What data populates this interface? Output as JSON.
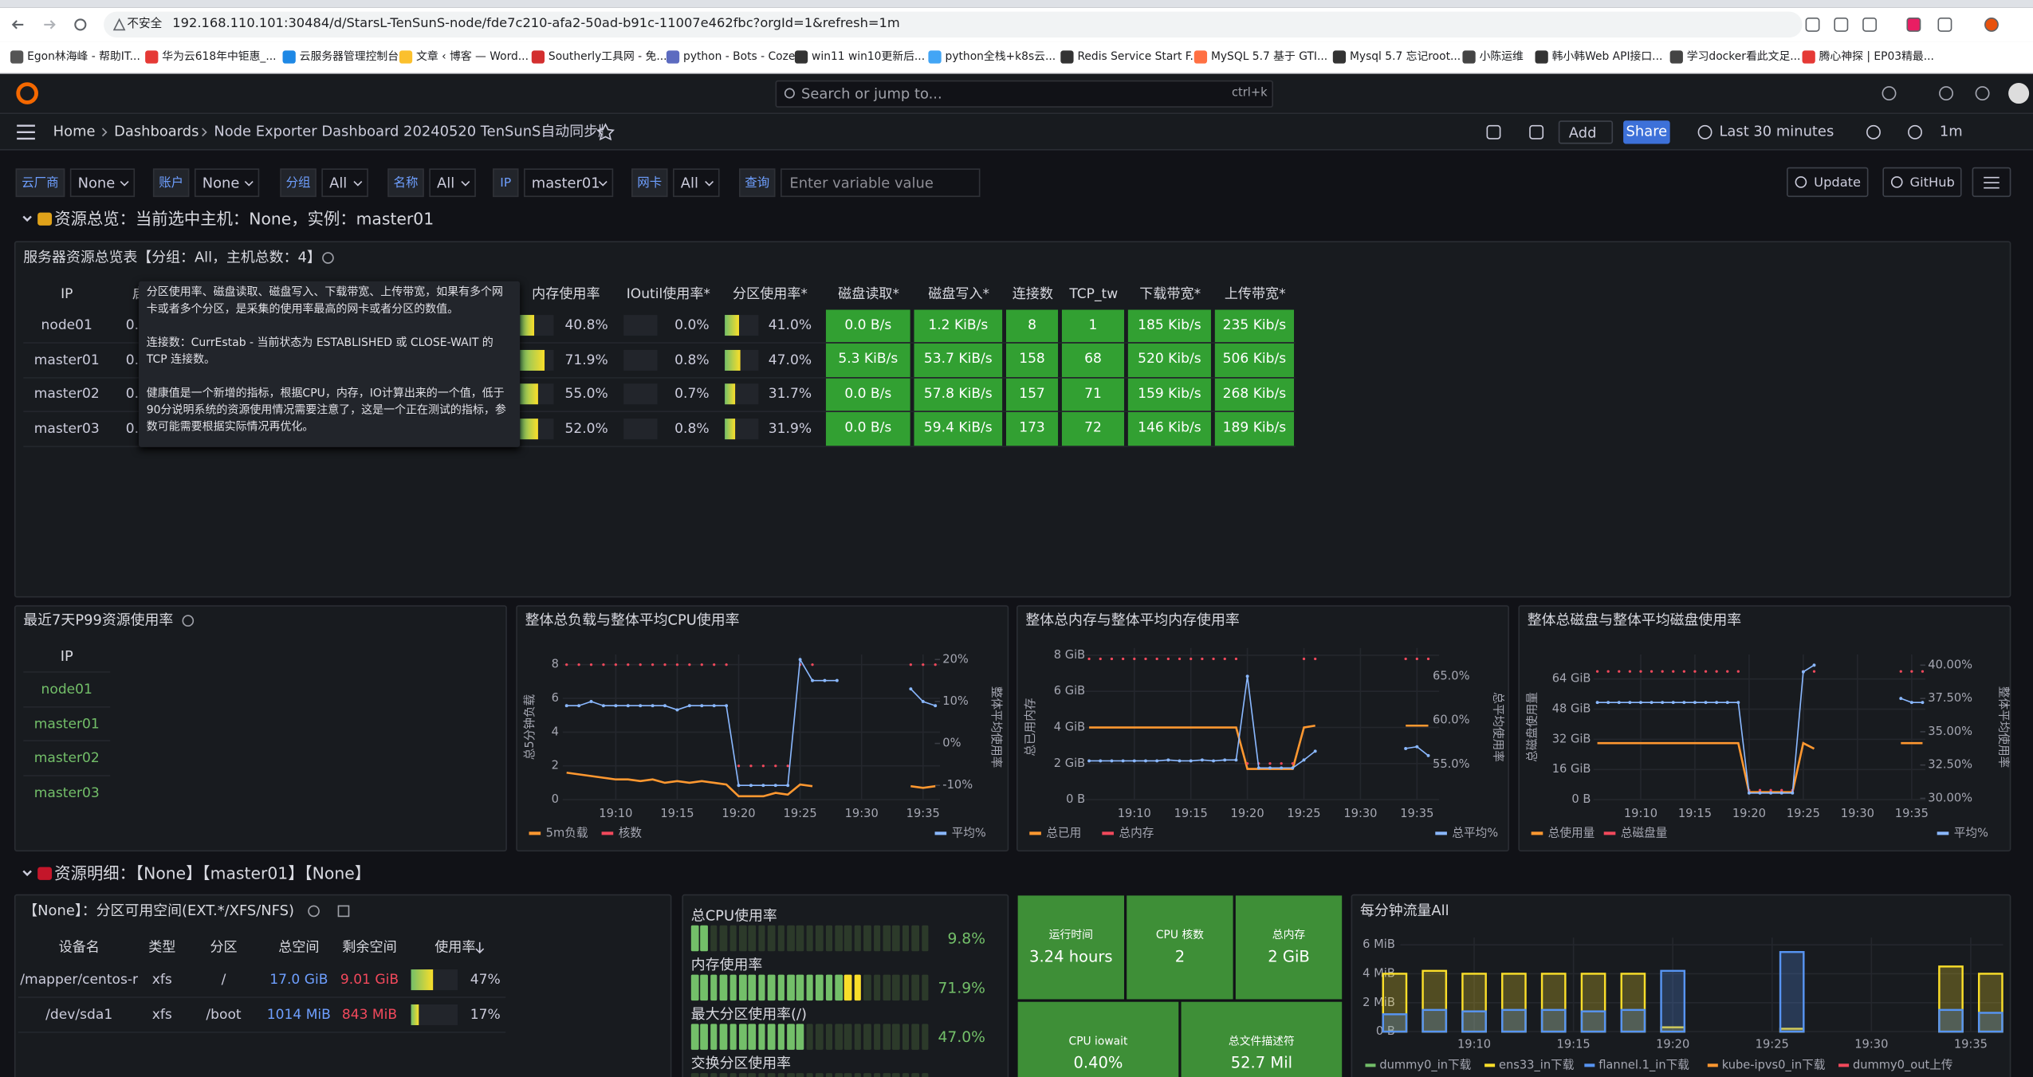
{
  "browser": {
    "security": "不安全",
    "url": "192.168.110.101:30484/d/StarsL-TenSunS-node/fde7c210-afa2-50ad-b91c-11007e462fbc?orgId=1&refresh=1m",
    "bookmarks": [
      "Egon林海峰 - 帮助IT...",
      "华为云618年中钜惠_...",
      "云服务器管理控制台",
      "文章 ‹ 博客 — Word...",
      "Southerly工具网 - 免...",
      "python - Bots - Coze",
      "win11 win10更新后...",
      "python全栈+k8s云...",
      "Redis Service Start F...",
      "MySQL 5.7 基于 GTI...",
      "Mysql 5.7 忘记root...",
      "小陈运维",
      "韩小韩Web API接口...",
      "学习docker看此文足...",
      "腾心神探 | EP03精最..."
    ]
  },
  "topbar": {
    "search": "Search or jump to...",
    "shortcut": "ctrl+k"
  },
  "breadcrumb": [
    "Home",
    "Dashboards",
    "Node Exporter Dashboard 20240520 TenSunS自动同步版"
  ],
  "toolbar": {
    "add": "Add",
    "share": "Share",
    "time_range": "Last 30 minutes",
    "refresh": "1m"
  },
  "variables": [
    {
      "label": "云厂商",
      "value": "None"
    },
    {
      "label": "账户",
      "value": "None"
    },
    {
      "label": "分组",
      "value": "All"
    },
    {
      "label": "名称",
      "value": "All"
    },
    {
      "label": "IP",
      "value": "master01"
    },
    {
      "label": "网卡",
      "value": "All"
    },
    {
      "label": "查询",
      "placeholder": "Enter variable value"
    }
  ],
  "links": [
    "Update",
    "GitHub"
  ],
  "rows": [
    "资源总览：当前选中主机：None，实例：master01",
    "资源明细：【None】【master01】【None】"
  ],
  "summary_table": {
    "title": "服务器资源总览表【分组：All，主机总数：4】",
    "columns": [
      "IP",
      "启动",
      "内存使用率",
      "IOutil使用率*",
      "分区使用率*",
      "磁盘读取*",
      "磁盘写入*",
      "连接数",
      "TCP_tw",
      "下载带宽*",
      "上传带宽*"
    ],
    "rows": [
      [
        "node01",
        "0.",
        "40.8%",
        "0.0%",
        "41.0%",
        "0.0 B/s",
        "1.2 KiB/s",
        "8",
        "1",
        "185 Kib/s",
        "235 Kib/s"
      ],
      [
        "master01",
        "0.",
        "71.9%",
        "0.8%",
        "47.0%",
        "5.3 KiB/s",
        "53.7 KiB/s",
        "158",
        "68",
        "520 Kib/s",
        "506 Kib/s"
      ],
      [
        "master02",
        "0.",
        "55.0%",
        "0.7%",
        "31.7%",
        "0.0 B/s",
        "57.8 KiB/s",
        "157",
        "71",
        "159 Kib/s",
        "268 Kib/s"
      ],
      [
        "master03",
        "0.",
        "52.0%",
        "0.8%",
        "31.9%",
        "0.0 B/s",
        "59.4 KiB/s",
        "173",
        "72",
        "146 Kib/s",
        "189 Kib/s"
      ]
    ],
    "tooltip": [
      "分区使用率、磁盘读取、磁盘写入、下载带宽、上传带宽，如果有多个网卡或者多个分区，是采集的使用率最高的网卡或者分区的数值。",
      "连接数：CurrEstab - 当前状态为 ESTABLISHED 或 CLOSE-WAIT 的 TCP 连接数。",
      "健康值是一个新增的指标，根据CPU，内存，IO计算出来的一个值，低于90分说明系统的资源使用情况需要注意了，这是一个正在测试的指标，参数可能需要根据实际情况再优化。"
    ]
  },
  "p99_panel": {
    "title": "最近7天P99资源使用率",
    "column": "IP",
    "rows": [
      "node01",
      "master01",
      "master02",
      "master03"
    ]
  },
  "charts": [
    {
      "title": "整体总负载与整体平均CPU使用率",
      "y_label": "总5分钟负载",
      "y2_label": "整体平均使用率",
      "x": [
        "19:06",
        "19:07",
        "19:08",
        "19:09",
        "19:10",
        "19:11",
        "19:12",
        "19:13",
        "19:14",
        "19:15",
        "19:16",
        "19:17",
        "19:18",
        "19:19",
        "19:20",
        "19:21",
        "19:22",
        "19:23",
        "19:24",
        "19:25",
        "19:26",
        "19:27",
        "19:28",
        "19:29",
        "19:30",
        "19:31",
        "19:32",
        "19:33",
        "19:34",
        "19:35",
        "19:36"
      ],
      "xticks": [
        "19:10",
        "19:15",
        "19:20",
        "19:25",
        "19:30",
        "19:35"
      ],
      "ylim": [
        0,
        8.6
      ],
      "yticks": [
        0,
        2,
        4,
        6,
        8
      ],
      "y2lim": [
        -13.4,
        21.2
      ],
      "y2ticks": [
        {
          "value": -10,
          "label": "-10%"
        },
        {
          "value": 0,
          "label": "0%"
        },
        {
          "value": 10,
          "label": "10%"
        },
        {
          "value": 20,
          "label": "20%"
        }
      ],
      "series": [
        {
          "name": "5m负载",
          "color": "#ff9830",
          "style": "line",
          "values": [
            1.6,
            1.5,
            1.4,
            1.3,
            1.2,
            1.2,
            1.1,
            1.2,
            1.0,
            1.1,
            1.0,
            1.1,
            1.0,
            0.9,
            0.2,
            0.2,
            0.2,
            0.4,
            0.3,
            0.9,
            0.8,
            null,
            null,
            null,
            null,
            null,
            null,
            null,
            0.8,
            0.7,
            0.8
          ]
        },
        {
          "name": "核数",
          "color": "#f2495c",
          "style": "dots",
          "values": [
            8,
            8,
            8,
            8,
            8,
            8,
            8,
            8,
            8,
            8,
            8,
            8,
            8,
            8,
            2,
            2,
            2,
            2,
            2,
            8,
            8,
            null,
            null,
            null,
            null,
            null,
            null,
            null,
            8,
            8,
            8
          ]
        },
        {
          "name": "平均%",
          "color": "#8ab8ff",
          "style": "line-points",
          "axis": "y2",
          "values": [
            9,
            9,
            10,
            9,
            9,
            9,
            9,
            9,
            9,
            8,
            9,
            9,
            9,
            9,
            -10,
            -10,
            -10,
            -10,
            -10,
            20,
            15,
            15,
            15,
            null,
            null,
            null,
            null,
            null,
            13,
            10,
            9
          ]
        }
      ]
    },
    {
      "title": "整体总内存与整体平均内存使用率",
      "y_label": "总已用内存",
      "y2_label": "总平均使用率",
      "x": [
        "19:06",
        "19:07",
        "19:08",
        "19:09",
        "19:10",
        "19:11",
        "19:12",
        "19:13",
        "19:14",
        "19:15",
        "19:16",
        "19:17",
        "19:18",
        "19:19",
        "19:20",
        "19:21",
        "19:22",
        "19:23",
        "19:24",
        "19:25",
        "19:26",
        "19:27",
        "19:28",
        "19:29",
        "19:30",
        "19:31",
        "19:32",
        "19:33",
        "19:34",
        "19:35",
        "19:36"
      ],
      "xticks": [
        "19:10",
        "19:15",
        "19:20",
        "19:25",
        "19:30",
        "19:35"
      ],
      "ylim": [
        0,
        8.4
      ],
      "yticks": [
        {
          "value": 0,
          "label": "0 B"
        },
        {
          "value": 2,
          "label": "2 GiB"
        },
        {
          "value": 4,
          "label": "4 GiB"
        },
        {
          "value": 6,
          "label": "6 GiB"
        },
        {
          "value": 8,
          "label": "8 GiB"
        }
      ],
      "y2lim": [
        51.0,
        68.2
      ],
      "y2ticks": [
        {
          "value": 55,
          "label": "55.0%"
        },
        {
          "value": 60,
          "label": "60.0%"
        },
        {
          "value": 65,
          "label": "65.0%"
        }
      ],
      "series": [
        {
          "name": "总已用",
          "color": "#ff9830",
          "style": "line",
          "values": [
            4.0,
            4.0,
            4.0,
            4.0,
            4.0,
            4.0,
            4.0,
            4.0,
            4.0,
            4.0,
            4.0,
            4.0,
            4.0,
            4.0,
            1.7,
            1.7,
            1.7,
            1.7,
            1.7,
            4.0,
            4.1,
            null,
            null,
            null,
            null,
            null,
            null,
            null,
            4.1,
            4.1,
            4.1
          ]
        },
        {
          "name": "总内存",
          "color": "#f2495c",
          "style": "dots",
          "values": [
            7.8,
            7.8,
            7.8,
            7.8,
            7.8,
            7.8,
            7.8,
            7.8,
            7.8,
            7.8,
            7.8,
            7.8,
            7.8,
            7.8,
            2.0,
            2.0,
            2.0,
            2.0,
            2.0,
            7.8,
            7.8,
            null,
            null,
            null,
            null,
            null,
            null,
            null,
            7.8,
            7.8,
            7.8
          ]
        },
        {
          "name": "总平均%",
          "color": "#8ab8ff",
          "style": "line-points",
          "axis": "y2",
          "values": [
            55.4,
            55.4,
            55.4,
            55.4,
            55.4,
            55.4,
            55.4,
            55.5,
            55.4,
            55.4,
            55.5,
            55.4,
            55.5,
            55.5,
            65.0,
            54.6,
            54.6,
            54.6,
            54.6,
            55.5,
            56.5,
            null,
            null,
            null,
            null,
            null,
            null,
            null,
            56.8,
            57.0,
            56.0
          ]
        }
      ]
    },
    {
      "title": "整体总磁盘与整体平均磁盘使用率",
      "y_label": "总磁盘使用量",
      "y2_label": "整体平均使用率",
      "x": [
        "19:06",
        "19:07",
        "19:08",
        "19:09",
        "19:10",
        "19:11",
        "19:12",
        "19:13",
        "19:14",
        "19:15",
        "19:16",
        "19:17",
        "19:18",
        "19:19",
        "19:20",
        "19:21",
        "19:22",
        "19:23",
        "19:24",
        "19:25",
        "19:26",
        "19:27",
        "19:28",
        "19:29",
        "19:30",
        "19:31",
        "19:32",
        "19:33",
        "19:34",
        "19:35",
        "19:36"
      ],
      "xticks": [
        "19:10",
        "19:15",
        "19:20",
        "19:25",
        "19:30",
        "19:35"
      ],
      "ylim": [
        0,
        77
      ],
      "yticks": [
        {
          "value": 0,
          "label": "0 B"
        },
        {
          "value": 16,
          "label": "16 GiB"
        },
        {
          "value": 32,
          "label": "32 GiB"
        },
        {
          "value": 48,
          "label": "48 GiB"
        },
        {
          "value": 64,
          "label": "64 GiB"
        }
      ],
      "y2lim": [
        29.9,
        40.8
      ],
      "y2ticks": [
        {
          "value": 30,
          "label": "30.00%"
        },
        {
          "value": 32.5,
          "label": "32.50%"
        },
        {
          "value": 35,
          "label": "35.00%"
        },
        {
          "value": 37.5,
          "label": "37.50%"
        },
        {
          "value": 40,
          "label": "40.00%"
        }
      ],
      "series": [
        {
          "name": "总使用量",
          "color": "#ff9830",
          "style": "line",
          "values": [
            30,
            30,
            30,
            30,
            30,
            30,
            30,
            30,
            30,
            30,
            30,
            30,
            30,
            30,
            4,
            4,
            4,
            4,
            4,
            30,
            27,
            null,
            null,
            null,
            null,
            null,
            null,
            null,
            30,
            30,
            30
          ]
        },
        {
          "name": "总磁盘量",
          "color": "#f2495c",
          "style": "dots",
          "values": [
            68,
            68,
            68,
            68,
            68,
            68,
            68,
            68,
            68,
            68,
            68,
            68,
            68,
            68,
            5,
            5,
            5,
            5,
            5,
            68,
            68,
            null,
            null,
            null,
            null,
            null,
            null,
            null,
            68,
            68,
            68
          ]
        },
        {
          "name": "平均%",
          "color": "#8ab8ff",
          "style": "line-points",
          "axis": "y2",
          "values": [
            37.2,
            37.2,
            37.2,
            37.2,
            37.2,
            37.2,
            37.2,
            37.2,
            37.2,
            37.2,
            37.2,
            37.2,
            37.2,
            37.2,
            30.4,
            30.4,
            30.4,
            30.4,
            30.4,
            39.5,
            40.0,
            null,
            null,
            null,
            null,
            null,
            null,
            null,
            37.5,
            37.2,
            37.2
          ]
        }
      ]
    }
  ],
  "disk_table": {
    "title": "【None】：分区可用空间(EXT.*/XFS/NFS)",
    "columns": [
      "设备名",
      "类型",
      "分区",
      "总空间",
      "剩余空间",
      "使用率"
    ],
    "rows": [
      [
        "/mapper/centos-r",
        "xfs",
        "/",
        "17.0 GiB",
        "9.01 GiB",
        "47%"
      ],
      [
        "/dev/sda1",
        "xfs",
        "/boot",
        "1014 MiB",
        "843 MiB",
        "17%"
      ]
    ]
  },
  "gauges": [
    {
      "label": "总CPU使用率",
      "value": "9.8%"
    },
    {
      "label": "内存使用率",
      "value": "71.9%"
    },
    {
      "label": "最大分区使用率(/)",
      "value": "47.0%"
    },
    {
      "label": "交换分区使用率"
    }
  ],
  "stats": [
    {
      "label": "运行时间",
      "value": "3.24 hours"
    },
    {
      "label": "CPU 核数",
      "value": "2"
    },
    {
      "label": "总内存",
      "value": "2 GiB"
    },
    {
      "label": "CPU iowait",
      "value": "0.40%"
    },
    {
      "label": "总文件描述符",
      "value": "52.7 Mil"
    }
  ],
  "traffic_chart": {
    "title": "每分钟流量All",
    "x": [
      "19:06",
      "19:07",
      "19:08",
      "19:09",
      "19:10",
      "19:11",
      "19:12",
      "19:13",
      "19:14",
      "19:15",
      "19:16",
      "19:17",
      "19:18",
      "19:19",
      "19:20",
      "19:21",
      "19:22",
      "19:23",
      "19:24",
      "19:25",
      "19:26",
      "19:27",
      "19:28",
      "19:29",
      "19:30",
      "19:31",
      "19:32",
      "19:33",
      "19:34",
      "19:35",
      "19:36"
    ],
    "xticks": [
      "19:10",
      "19:15",
      "19:20",
      "19:25",
      "19:30",
      "19:35"
    ],
    "ylim": [
      0,
      6.5
    ],
    "yticks": [
      {
        "value": 0,
        "label": "0 B"
      },
      {
        "value": 2,
        "label": "2 MiB"
      },
      {
        "value": 4,
        "label": "4 MiB"
      },
      {
        "value": 6,
        "label": "6 MiB"
      }
    ],
    "series": [
      {
        "name": "dummy0_in下载",
        "color": "#73bf69",
        "values": [
          null,
          null,
          null,
          null,
          null,
          null,
          null,
          null,
          null,
          null,
          null,
          null,
          null,
          null,
          null,
          null,
          null,
          null,
          null,
          null,
          null,
          null,
          null,
          null,
          null,
          null,
          null,
          null,
          null,
          null,
          null
        ]
      },
      {
        "name": "ens33_in下载",
        "color": "#fade2a",
        "values": [
          4.0,
          null,
          4.2,
          null,
          4.0,
          null,
          4.0,
          null,
          4.0,
          null,
          4.0,
          null,
          4.0,
          null,
          0.3,
          null,
          null,
          null,
          null,
          null,
          0.2,
          null,
          null,
          null,
          null,
          null,
          null,
          null,
          4.5,
          null,
          4.0
        ]
      },
      {
        "name": "flannel.1_in下载",
        "color": "#5794f2",
        "values": [
          1.2,
          null,
          1.5,
          null,
          1.4,
          null,
          1.5,
          null,
          1.5,
          null,
          1.4,
          null,
          1.5,
          null,
          4.2,
          null,
          null,
          null,
          null,
          null,
          5.5,
          null,
          null,
          null,
          null,
          null,
          null,
          null,
          1.5,
          null,
          1.3
        ]
      },
      {
        "name": "kube-ipvs0_in下载",
        "color": "#ff9830",
        "values": [
          null,
          null,
          null,
          null,
          null,
          null,
          null,
          null,
          null,
          null,
          null,
          null,
          null,
          null,
          null,
          null,
          null,
          null,
          null,
          null,
          null,
          null,
          null,
          null,
          null,
          null,
          null,
          null,
          null,
          null,
          null
        ]
      },
      {
        "name": "dummy0_out上传",
        "color": "#f2495c",
        "values": [
          null,
          null,
          null,
          null,
          null,
          null,
          null,
          null,
          null,
          null,
          null,
          null,
          null,
          null,
          null,
          null,
          null,
          null,
          null,
          null,
          null,
          null,
          null,
          null,
          null,
          null,
          null,
          null,
          null,
          null,
          null
        ]
      }
    ]
  }
}
